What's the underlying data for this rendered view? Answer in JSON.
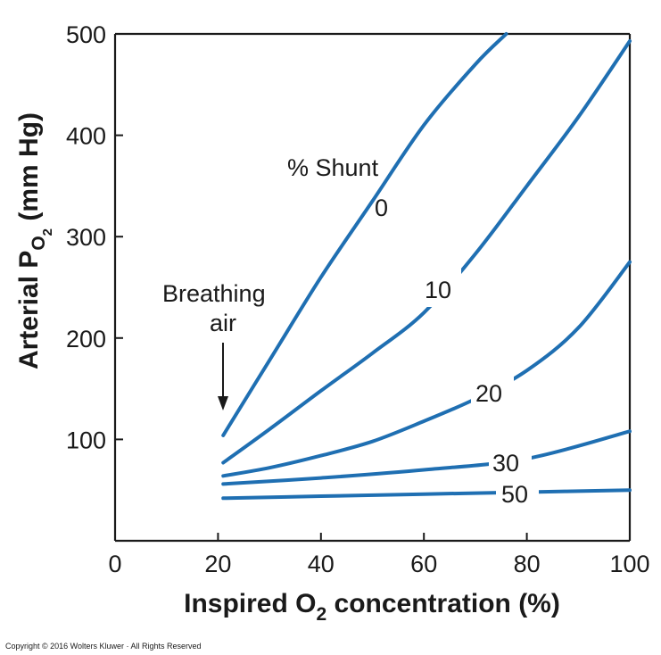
{
  "chart_data": {
    "type": "line",
    "xlabel_main": "Inspired O",
    "xlabel_sub": "2",
    "xlabel_rest": " concentration (%)",
    "ylabel_main": "Arterial P",
    "ylabel_sub1": "O",
    "ylabel_sub2": "2",
    "ylabel_rest": " (mm Hg)",
    "xlim": [
      0,
      100
    ],
    "ylim": [
      0,
      500
    ],
    "x_ticks": [
      "0",
      "20",
      "40",
      "60",
      "80",
      "100"
    ],
    "y_ticks": [
      "100",
      "200",
      "300",
      "400",
      "500"
    ],
    "line_color": "#1f6fb2",
    "legend_title": "% Shunt",
    "series": [
      {
        "name": "0",
        "x": [
          21,
          30,
          40,
          50,
          60,
          70,
          76
        ],
        "y": [
          104,
          178,
          260,
          335,
          410,
          470,
          500
        ]
      },
      {
        "name": "10",
        "x": [
          21,
          30,
          40,
          50,
          60,
          70,
          80,
          90,
          100
        ],
        "y": [
          77,
          110,
          148,
          185,
          225,
          283,
          350,
          418,
          493
        ]
      },
      {
        "name": "20",
        "x": [
          21,
          30,
          40,
          50,
          60,
          70,
          80,
          90,
          100
        ],
        "y": [
          64,
          72,
          84,
          98,
          118,
          140,
          168,
          210,
          275
        ]
      },
      {
        "name": "30",
        "x": [
          21,
          40,
          60,
          80,
          100
        ],
        "y": [
          56,
          62,
          70,
          81,
          108
        ]
      },
      {
        "name": "50",
        "x": [
          21,
          40,
          60,
          80,
          100
        ],
        "y": [
          42,
          44,
          46,
          48,
          50
        ]
      }
    ],
    "annotations": {
      "breathing_line1": "Breathing",
      "breathing_line2": "air",
      "arrow_x": 21
    }
  },
  "copyright": "Copyright © 2016 Wolters Kluwer · All Rights Reserved"
}
